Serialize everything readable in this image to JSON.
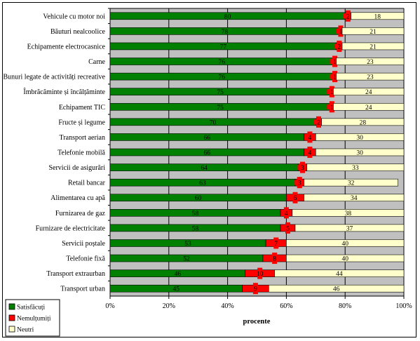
{
  "chart_data": {
    "type": "bar",
    "orientation": "horizontal",
    "stacked": "percent",
    "categories": [
      "Vehicule cu motor noi",
      "Băuturi nealcoolice",
      "Echipamente electrocasnice",
      "Carne",
      "Bunuri legate de activități recreative",
      "Îmbrăcăminte și încălțăminte",
      "Echipament TIC",
      "Fructe și legume",
      "Transport aerian",
      "Telefonie mobilă",
      "Servicii de asigurări",
      "Retail bancar",
      "Alimentarea cu apă",
      "Furnizarea de gaz",
      "Furnizare de electricitate",
      "Servicii poștale",
      "Telefonie fixă",
      "Transport extraurban",
      "Transport urban"
    ],
    "series": [
      {
        "name": "Satisfăcuți",
        "color": "#008000",
        "values": [
          80,
          78,
          77,
          76,
          76,
          75,
          75,
          70,
          66,
          66,
          64,
          63,
          60,
          58,
          58,
          53,
          52,
          46,
          45
        ],
        "labels": [
          "80",
          "78",
          "77",
          "76",
          "76",
          "75",
          "75",
          "70",
          "66",
          "66",
          "64",
          "63",
          "60",
          "58",
          "58",
          "53",
          "52",
          "46",
          "45"
        ]
      },
      {
        "name": "Nemulțumiți",
        "color": "#ff0000",
        "values": [
          2,
          1,
          2,
          1,
          1,
          1,
          1,
          2,
          4,
          4,
          3,
          3,
          6,
          4,
          5,
          7,
          8,
          10,
          9
        ],
        "labels": [
          "2",
          "1",
          "2",
          "1",
          "1",
          "1",
          "1",
          "2",
          "4",
          "4",
          "3",
          "3",
          "6",
          "4",
          "5",
          "7",
          "8",
          "10",
          "9"
        ]
      },
      {
        "name": "Neutri",
        "color": "#ffffcc",
        "values": [
          18,
          21,
          21,
          23,
          23,
          24,
          24,
          28,
          30,
          30,
          33,
          32,
          34,
          38,
          37,
          40,
          40,
          44,
          46
        ],
        "labels": [
          "18",
          "21",
          "21",
          "23",
          "23",
          "24",
          "24",
          "28",
          "30",
          "30",
          "33",
          "32",
          "34",
          "38",
          "37",
          "40",
          "40",
          "44",
          "46"
        ]
      }
    ],
    "xlabel": "procente",
    "xlim": [
      0,
      100
    ],
    "xticks": [
      "0%",
      "20%",
      "40%",
      "60%",
      "80%",
      "100%"
    ],
    "plot_background": "#c0c0c0",
    "grid": true,
    "legend_position": "bottom-left"
  }
}
